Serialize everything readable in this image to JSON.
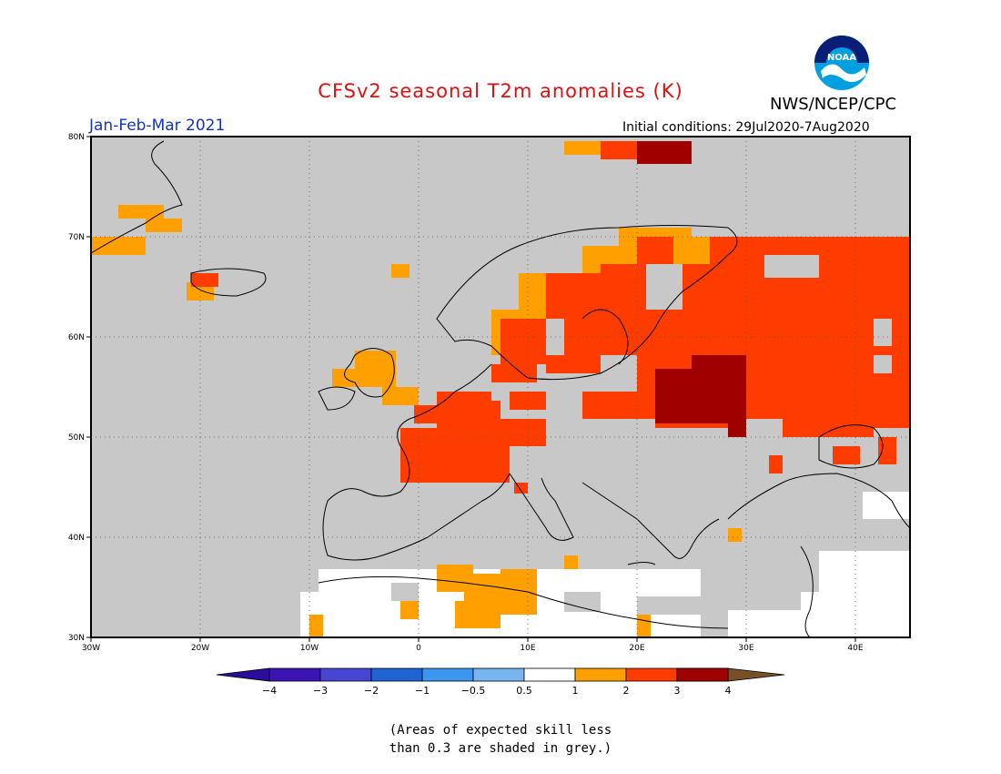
{
  "title": "CFSv2 seasonal T2m anomalies (K)",
  "agency": "NWS/NCEP/CPC",
  "logo_text": "NOAA",
  "period": "Jan-Feb-Mar 2021",
  "initial_conditions": "Initial conditions: 29Jul2020-7Aug2020",
  "note_line1": "(Areas of expected skill less",
  "note_line2": "than 0.3 are shaded in grey.)",
  "map": {
    "lon_range": [
      -30,
      45
    ],
    "lat_range": [
      30,
      80
    ],
    "lon_ticks": [
      "30W",
      "20W",
      "10W",
      "0",
      "10E",
      "20E",
      "30E",
      "40E"
    ],
    "lat_ticks": [
      "80N",
      "70N",
      "60N",
      "50N",
      "40N",
      "30N"
    ],
    "colors": {
      "low_skill": "#c8c8c8",
      "ocean_bg": "#c8c8c8",
      "neutral": "#ffffff",
      "c_0_5_1": "#ffa000",
      "c_1_2": "#ff3c00",
      "c_2_3": "#a00000",
      "c_3_4": "#c8a090",
      "c_gt4": "#785028"
    },
    "regions": [
      {
        "name": "Scandinavia interior",
        "class": "1-2"
      },
      {
        "name": "Western Russia",
        "class": "1-2"
      },
      {
        "name": "Belarus / Baltic core",
        "class": "2-3"
      },
      {
        "name": "Northern Norway coast",
        "class": "0.5-1"
      },
      {
        "name": "France / Benelux / Germany",
        "class": "1-2"
      },
      {
        "name": "Svalbard",
        "class": "1-2"
      },
      {
        "name": "Greenland coast",
        "class": "0.5-1"
      },
      {
        "name": "North Africa",
        "class": "0.5-1"
      }
    ]
  },
  "colorbar": {
    "labels": [
      "−4",
      "−3",
      "−2",
      "−1",
      "−0.5",
      "0.5",
      "1",
      "2",
      "3",
      "4"
    ],
    "colors": [
      "#3c14b4",
      "#4646d2",
      "#1e64d2",
      "#3c96f0",
      "#78b4f0",
      "#ffffff",
      "#ffa000",
      "#ff3c00",
      "#a00000",
      "#c8a090"
    ],
    "left_arrow_color": "#2c0c9c",
    "right_arrow_color": "#785028"
  }
}
